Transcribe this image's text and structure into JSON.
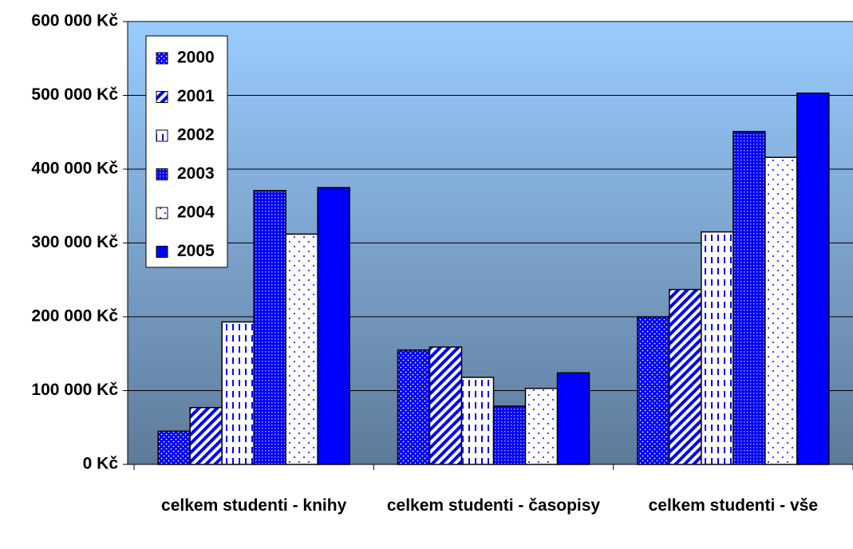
{
  "chart_data": {
    "type": "bar",
    "categories": [
      "celkem studenti - knihy",
      "celkem studenti - časopisy",
      "celkem studenti - vše"
    ],
    "series": [
      {
        "name": "2000",
        "color": "#0000ff",
        "pattern": "dots",
        "values": [
          45000,
          155000,
          200000
        ]
      },
      {
        "name": "2001",
        "color": "#0000ff",
        "pattern": "diagonal",
        "values": [
          77000,
          159000,
          237000
        ]
      },
      {
        "name": "2002",
        "color": "#0000ff",
        "pattern": "dashes",
        "values": [
          193000,
          118000,
          315000
        ]
      },
      {
        "name": "2003",
        "color": "#0000ff",
        "pattern": "grid",
        "values": [
          371000,
          79000,
          451000
        ]
      },
      {
        "name": "2004",
        "color": "#0000ff",
        "pattern": "sparse",
        "values": [
          312000,
          103000,
          416000
        ]
      },
      {
        "name": "2005",
        "color": "#0000ff",
        "pattern": "solid",
        "values": [
          375000,
          124000,
          503000
        ]
      }
    ],
    "ylim": [
      0,
      600000
    ],
    "yticks": [
      {
        "value": 0,
        "label": "0 Kč"
      },
      {
        "value": 100000,
        "label": "100 000 Kč"
      },
      {
        "value": 200000,
        "label": "200 000 Kč"
      },
      {
        "value": 300000,
        "label": "300 000 Kč"
      },
      {
        "value": 400000,
        "label": "400 000 Kč"
      },
      {
        "value": 500000,
        "label": "500 000 Kč"
      },
      {
        "value": 600000,
        "label": "600 000 Kč"
      }
    ],
    "grid": true,
    "legend": "top-left"
  }
}
